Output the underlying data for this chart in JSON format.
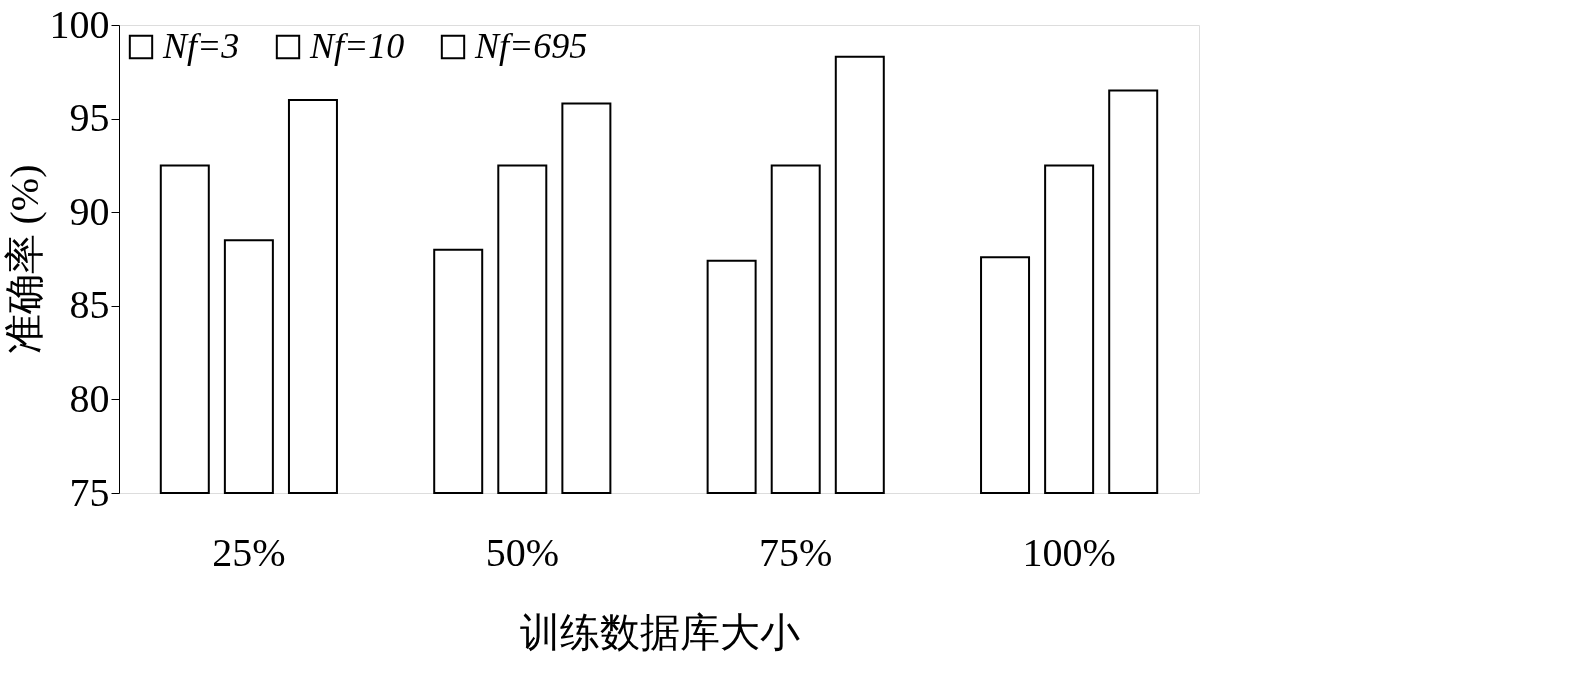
{
  "chart_data": {
    "type": "bar",
    "xlabel": "训练数据库大小",
    "ylabel": "准确率 (%)",
    "categories": [
      "25%",
      "50%",
      "75%",
      "100%"
    ],
    "series": [
      {
        "name": "Nf=3",
        "color": "#ffffff",
        "values": [
          92.5,
          88.0,
          87.4,
          87.6
        ]
      },
      {
        "name": "Nf=10",
        "color": "#ffffff",
        "values": [
          88.5,
          92.5,
          92.5,
          92.5
        ]
      },
      {
        "name": "Nf=695",
        "color": "#ffffff",
        "values": [
          96.0,
          95.8,
          98.3,
          96.5
        ]
      }
    ],
    "ylim": [
      75,
      100
    ],
    "yticks": [
      75,
      80,
      85,
      90,
      95,
      100
    ],
    "grid": false,
    "legend": "top left"
  }
}
